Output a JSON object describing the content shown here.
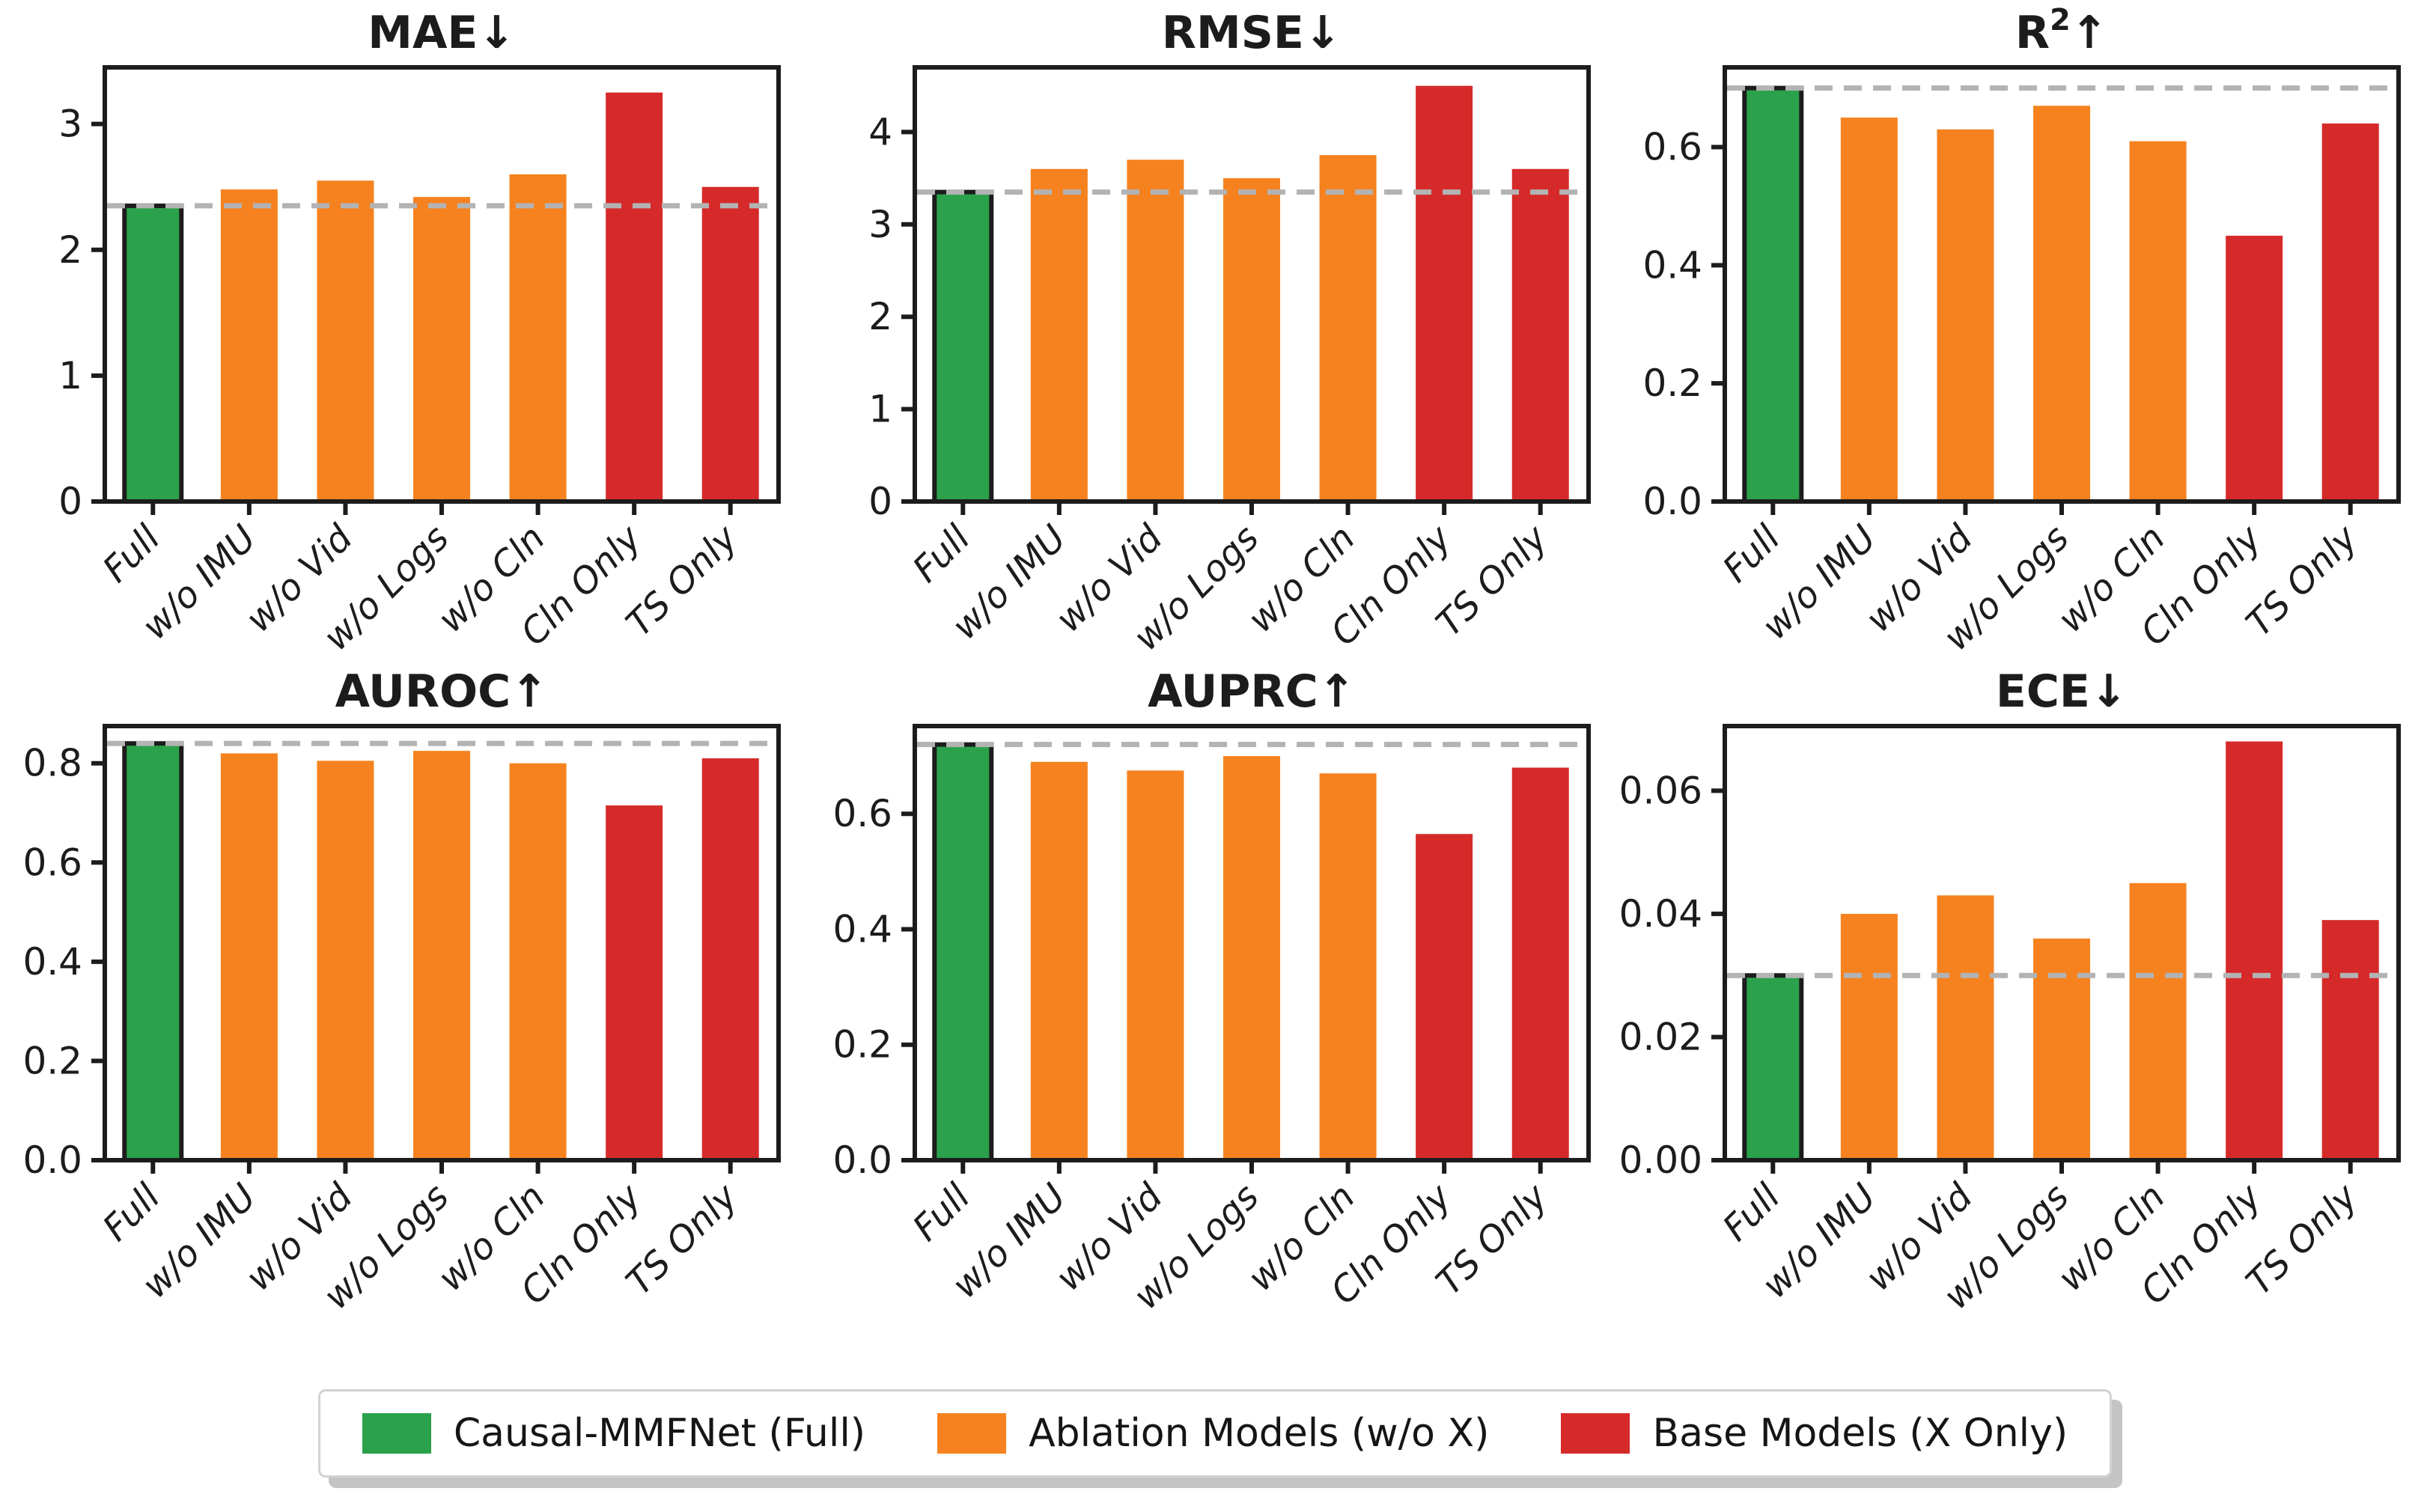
{
  "colors": {
    "green": "#2aa14a",
    "orange": "#f5821f",
    "red": "#d62a2a",
    "axis": "#1c1c1c",
    "baseline_dash": "#b3b3b3",
    "text": "#1c1c1c"
  },
  "chart_data": [
    {
      "type": "bar",
      "title": "MAE",
      "sup": "",
      "arrow": "↓",
      "categories": [
        "Full",
        "w/o IMU",
        "w/o Vid",
        "w/o Logs",
        "w/o Cln",
        "Cln Only",
        "TS Only"
      ],
      "values": [
        2.35,
        2.48,
        2.55,
        2.42,
        2.6,
        3.25,
        2.5
      ],
      "baseline": 2.35,
      "yticks": [
        0,
        1,
        2,
        3
      ],
      "ytick_labels": [
        "0",
        "1",
        "2",
        "3"
      ],
      "ylim": [
        0,
        3.45
      ],
      "bar_colors": [
        "green",
        "orange",
        "orange",
        "orange",
        "orange",
        "red",
        "red"
      ],
      "highlight_first": true,
      "grid": false
    },
    {
      "type": "bar",
      "title": "RMSE",
      "sup": "",
      "arrow": "↓",
      "categories": [
        "Full",
        "w/o IMU",
        "w/o Vid",
        "w/o Logs",
        "w/o Cln",
        "Cln Only",
        "TS Only"
      ],
      "values": [
        3.35,
        3.6,
        3.7,
        3.5,
        3.75,
        4.5,
        3.6
      ],
      "baseline": 3.35,
      "yticks": [
        0,
        1,
        2,
        3,
        4
      ],
      "ytick_labels": [
        "0",
        "1",
        "2",
        "3",
        "4"
      ],
      "ylim": [
        0,
        4.7
      ],
      "bar_colors": [
        "green",
        "orange",
        "orange",
        "orange",
        "orange",
        "red",
        "red"
      ],
      "highlight_first": true,
      "grid": false
    },
    {
      "type": "bar",
      "title": "R",
      "sup": "2",
      "arrow": "↑",
      "categories": [
        "Full",
        "w/o IMU",
        "w/o Vid",
        "w/o Logs",
        "w/o Cln",
        "Cln Only",
        "TS Only"
      ],
      "values": [
        0.7,
        0.65,
        0.63,
        0.67,
        0.61,
        0.45,
        0.64
      ],
      "baseline": 0.7,
      "yticks": [
        0.0,
        0.2,
        0.4,
        0.6
      ],
      "ytick_labels": [
        "0.0",
        "0.2",
        "0.4",
        "0.6"
      ],
      "ylim": [
        0,
        0.735
      ],
      "bar_colors": [
        "green",
        "orange",
        "orange",
        "orange",
        "orange",
        "red",
        "red"
      ],
      "highlight_first": true,
      "grid": false
    },
    {
      "type": "bar",
      "title": "AUROC",
      "sup": "",
      "arrow": "↑",
      "categories": [
        "Full",
        "w/o IMU",
        "w/o Vid",
        "w/o Logs",
        "w/o Cln",
        "Cln Only",
        "TS Only"
      ],
      "values": [
        0.84,
        0.82,
        0.805,
        0.825,
        0.8,
        0.715,
        0.81
      ],
      "baseline": 0.84,
      "yticks": [
        0.0,
        0.2,
        0.4,
        0.6,
        0.8
      ],
      "ytick_labels": [
        "0.0",
        "0.2",
        "0.4",
        "0.6",
        "0.8"
      ],
      "ylim": [
        0,
        0.875
      ],
      "bar_colors": [
        "green",
        "orange",
        "orange",
        "orange",
        "orange",
        "red",
        "red"
      ],
      "highlight_first": true,
      "grid": false
    },
    {
      "type": "bar",
      "title": "AUPRC",
      "sup": "",
      "arrow": "↑",
      "categories": [
        "Full",
        "w/o IMU",
        "w/o Vid",
        "w/o Logs",
        "w/o Cln",
        "Cln Only",
        "TS Only"
      ],
      "values": [
        0.72,
        0.69,
        0.675,
        0.7,
        0.67,
        0.565,
        0.68
      ],
      "baseline": 0.72,
      "yticks": [
        0.0,
        0.2,
        0.4,
        0.6
      ],
      "ytick_labels": [
        "0.0",
        "0.2",
        "0.4",
        "0.6"
      ],
      "ylim": [
        0,
        0.752
      ],
      "bar_colors": [
        "green",
        "orange",
        "orange",
        "orange",
        "orange",
        "red",
        "red"
      ],
      "highlight_first": true,
      "grid": false
    },
    {
      "type": "bar",
      "title": "ECE",
      "sup": "",
      "arrow": "↓",
      "categories": [
        "Full",
        "w/o IMU",
        "w/o Vid",
        "w/o Logs",
        "w/o Cln",
        "Cln Only",
        "TS Only"
      ],
      "values": [
        0.03,
        0.04,
        0.043,
        0.036,
        0.045,
        0.068,
        0.039
      ],
      "baseline": 0.03,
      "yticks": [
        0.0,
        0.02,
        0.04,
        0.06
      ],
      "ytick_labels": [
        "0.00",
        "0.02",
        "0.04",
        "0.06"
      ],
      "ylim": [
        0,
        0.0705
      ],
      "bar_colors": [
        "green",
        "orange",
        "orange",
        "orange",
        "orange",
        "red",
        "red"
      ],
      "highlight_first": true,
      "grid": false
    }
  ],
  "legend": {
    "items": [
      {
        "label": "Causal-MMFNet (Full)",
        "color": "#2aa14a"
      },
      {
        "label": "Ablation Models (w/o X)",
        "color": "#f5821f"
      },
      {
        "label": "Base Models (X Only)",
        "color": "#d62a2a"
      }
    ]
  }
}
